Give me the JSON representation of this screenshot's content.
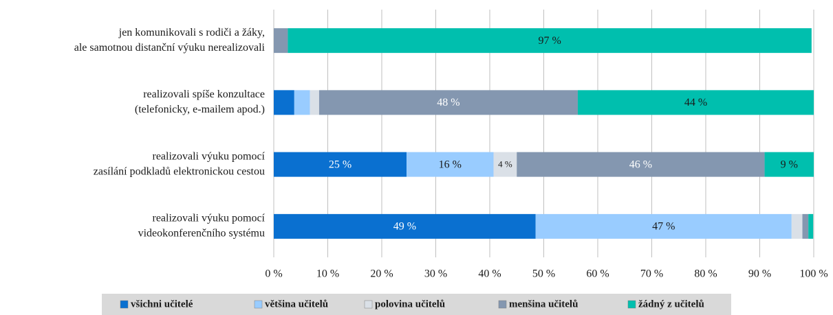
{
  "chart_data": {
    "type": "stacked_barh",
    "categories": [
      [
        "jen komunikovali s rodiči a žáky,",
        "ale samotnou distanční výuku nerealizovali"
      ],
      [
        "realizovali spíše konzultace",
        "(telefonicky, e-mailem apod.)"
      ],
      [
        "realizovali výuku pomocí",
        "zasílání podkladů elektronickou cestou"
      ],
      [
        "realizovali výuku pomocí",
        "videokonferenčního systému"
      ]
    ],
    "series": [
      {
        "name": "všichni učitelé",
        "color": "#0a70d0",
        "label_color": "#ffffff",
        "values": [
          0,
          3.8,
          24.6,
          48.5
        ],
        "value_labels": [
          null,
          null,
          "25 %",
          "49 %"
        ]
      },
      {
        "name": "většina učitelů",
        "color": "#99ccff",
        "label_color": "#1a1a1a",
        "values": [
          0,
          2.9,
          16.1,
          47.4
        ],
        "value_labels": [
          null,
          null,
          "16 %",
          "47 %"
        ]
      },
      {
        "name": "polovina učitelů",
        "color": "#dae0e7",
        "label_color": "#1a1a1a",
        "values": [
          0,
          1.7,
          4.3,
          2.0
        ],
        "value_labels": [
          null,
          null,
          "4 %",
          null
        ]
      },
      {
        "name": "menšina učitelů",
        "color": "#8497b0",
        "label_color": "#ffffff",
        "values": [
          2.6,
          47.9,
          45.9,
          1.1
        ],
        "value_labels": [
          null,
          "48 %",
          "46 %",
          null
        ]
      },
      {
        "name": "žádný z učitelů",
        "color": "#00bfae",
        "label_color": "#1a1a1a",
        "values": [
          97,
          43.7,
          9.1,
          0.9
        ],
        "value_labels": [
          "97 %",
          "44 %",
          "9 %",
          null
        ]
      }
    ],
    "xlim": [
      0,
      100
    ],
    "xticks": [
      {
        "value": 0,
        "label": "0 %"
      },
      {
        "value": 10,
        "label": "10 %"
      },
      {
        "value": 20,
        "label": "20 %"
      },
      {
        "value": 30,
        "label": "30 %"
      },
      {
        "value": 40,
        "label": "40 %"
      },
      {
        "value": 50,
        "label": "50 %"
      },
      {
        "value": 60,
        "label": "60 %"
      },
      {
        "value": 70,
        "label": "70 %"
      },
      {
        "value": 80,
        "label": "80 %"
      },
      {
        "value": 90,
        "label": "90 %"
      },
      {
        "value": 100,
        "label": "100 %"
      }
    ],
    "grid": true
  }
}
